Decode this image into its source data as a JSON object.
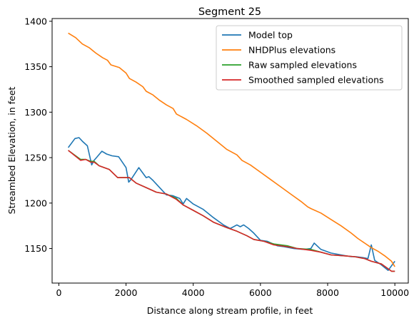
{
  "chart_data": {
    "type": "line",
    "title": "Segment 25",
    "xlabel": "Distance along stream profile, in feet",
    "ylabel": "Streambed Elevation, in feet",
    "xlim": [
      -200,
      10400
    ],
    "ylim": [
      1112,
      1403
    ],
    "xticks": [
      0,
      2000,
      4000,
      6000,
      8000,
      10000
    ],
    "yticks": [
      1150,
      1200,
      1250,
      1300,
      1350,
      1400
    ],
    "grid": false,
    "legend_position": "top-right",
    "series": [
      {
        "name": "Model top",
        "color": "#1f77b4",
        "x": [
          280,
          480,
          600,
          700,
          850,
          980,
          1050,
          1120,
          1280,
          1420,
          1580,
          1780,
          2000,
          2080,
          2150,
          2380,
          2600,
          2680,
          2800,
          3000,
          3200,
          3400,
          3600,
          3700,
          3800,
          4000,
          4300,
          4600,
          4900,
          5100,
          5300,
          5400,
          5500,
          5650,
          5800,
          6000,
          6200,
          6500,
          6700,
          7000,
          7300,
          7500,
          7600,
          7800,
          8100,
          8400,
          8700,
          8850,
          9050,
          9200,
          9300,
          9400,
          9600,
          9800,
          10000
        ],
        "y": [
          1261,
          1271,
          1272,
          1268,
          1263,
          1242,
          1247,
          1250,
          1257,
          1254,
          1252,
          1251,
          1239,
          1223,
          1226,
          1239,
          1228,
          1229,
          1225,
          1217,
          1209,
          1208,
          1205,
          1199,
          1205,
          1199,
          1193,
          1184,
          1176,
          1172,
          1176,
          1174,
          1176,
          1172,
          1167,
          1159,
          1158,
          1153,
          1152,
          1150,
          1149,
          1150,
          1156,
          1149,
          1145,
          1143,
          1141,
          1141,
          1140,
          1139,
          1154,
          1137,
          1132,
          1126,
          1136
        ]
      },
      {
        "name": "NHDPlus elevations",
        "color": "#ff7f0e",
        "x": [
          280,
          500,
          700,
          900,
          1100,
          1300,
          1450,
          1550,
          1800,
          2000,
          2100,
          2300,
          2500,
          2600,
          2800,
          3000,
          3200,
          3400,
          3500,
          3800,
          4100,
          4400,
          4700,
          4900,
          5000,
          5300,
          5450,
          5700,
          6000,
          6300,
          6600,
          6900,
          7200,
          7400,
          7500,
          7800,
          8100,
          8400,
          8700,
          8900,
          9100,
          9300,
          9500,
          9700,
          9900,
          10000
        ],
        "y": [
          1387,
          1382,
          1375,
          1371,
          1365,
          1360,
          1357,
          1352,
          1349,
          1343,
          1337,
          1333,
          1328,
          1323,
          1319,
          1313,
          1308,
          1304,
          1298,
          1292,
          1285,
          1277,
          1268,
          1262,
          1259,
          1253,
          1247,
          1242,
          1234,
          1226,
          1218,
          1210,
          1202,
          1196,
          1194,
          1189,
          1182,
          1175,
          1167,
          1161,
          1156,
          1151,
          1147,
          1142,
          1136,
          1130
        ]
      },
      {
        "name": "Raw sampled elevations",
        "color": "#2ca02c",
        "x": [
          280,
          650,
          800,
          950,
          1050,
          1200,
          1500,
          1750,
          2100,
          2300,
          2600,
          2900,
          3200,
          3500,
          3700,
          4000,
          4300,
          4600,
          5000,
          5300,
          5600,
          5800,
          6100,
          6400,
          6800,
          7100,
          7500,
          7800,
          8100,
          8500,
          8800,
          9100,
          9300,
          9600,
          9900,
          10000
        ],
        "y": [
          1258,
          1248,
          1248,
          1246,
          1246,
          1241,
          1237,
          1228,
          1228,
          1222,
          1217,
          1212,
          1210,
          1205,
          1198,
          1192,
          1186,
          1179,
          1173,
          1169,
          1164,
          1160,
          1158,
          1155,
          1153,
          1150,
          1149,
          1146,
          1143,
          1142,
          1141,
          1139,
          1136,
          1133,
          1125,
          1125
        ]
      },
      {
        "name": "Smoothed sampled elevations",
        "color": "#d62728",
        "x": [
          280,
          650,
          800,
          950,
          1050,
          1200,
          1500,
          1750,
          2100,
          2300,
          2600,
          2900,
          3200,
          3500,
          3700,
          4000,
          4300,
          4600,
          5000,
          5300,
          5600,
          5800,
          6100,
          6400,
          6800,
          7100,
          7500,
          7800,
          8100,
          8500,
          8800,
          9100,
          9300,
          9600,
          9900,
          10000
        ],
        "y": [
          1258,
          1247,
          1248,
          1245,
          1245,
          1241,
          1237,
          1228,
          1228,
          1222,
          1217,
          1212,
          1210,
          1204,
          1198,
          1192,
          1186,
          1179,
          1173,
          1169,
          1164,
          1160,
          1158,
          1154,
          1152,
          1150,
          1148,
          1146,
          1143,
          1142,
          1141,
          1139,
          1136,
          1133,
          1125,
          1125
        ]
      }
    ]
  }
}
